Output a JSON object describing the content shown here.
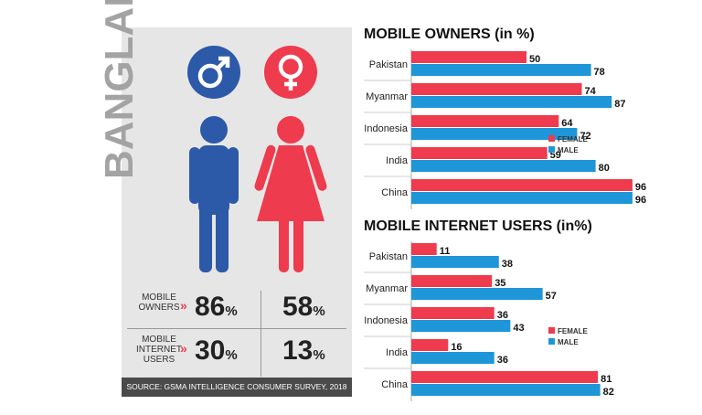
{
  "left_panel": {
    "country": "BANGLADESH",
    "male_icon": "male-symbol-icon",
    "female_icon": "female-symbol-icon",
    "rows": [
      {
        "label_lines": [
          "MOBILE",
          "OWNERS"
        ],
        "male": "86",
        "female": "58",
        "unit": "%"
      },
      {
        "label_lines": [
          "MOBILE",
          "INTERNET",
          "USERS"
        ],
        "male": "30",
        "female": "13",
        "unit": "%"
      }
    ],
    "source": "SOURCE: GSMA INTELLIGENCE CONSUMER SURVEY, 2018"
  },
  "colors": {
    "female": "#ee3b4d",
    "male": "#1e96d8",
    "male_figure": "#2c59a8",
    "panel": "#e6e6e6",
    "source_bar": "#4a4a4a"
  },
  "chart_data": [
    {
      "type": "bar",
      "title": "MOBILE OWNERS (in %)",
      "categories": [
        "Pakistan",
        "Myanmar",
        "Indonesia",
        "India",
        "China"
      ],
      "series": [
        {
          "name": "FEMALE",
          "values": [
            50,
            74,
            64,
            59,
            96
          ]
        },
        {
          "name": "MALE",
          "values": [
            78,
            87,
            72,
            80,
            96
          ]
        }
      ],
      "legend_placement": "right"
    },
    {
      "type": "bar",
      "title": "MOBILE INTERNET USERS (in%)",
      "categories": [
        "Pakistan",
        "Myanmar",
        "Indonesia",
        "India",
        "China"
      ],
      "series": [
        {
          "name": "FEMALE",
          "values": [
            11,
            35,
            36,
            16,
            81
          ]
        },
        {
          "name": "MALE",
          "values": [
            38,
            57,
            43,
            36,
            82
          ]
        }
      ],
      "legend_placement": "right"
    }
  ]
}
